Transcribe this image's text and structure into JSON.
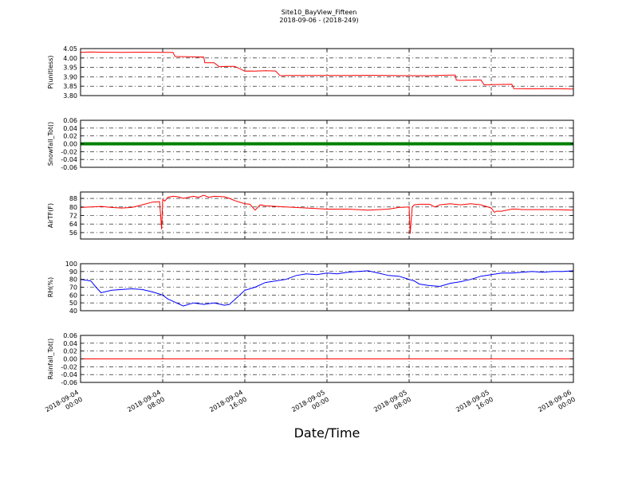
{
  "figure": {
    "title": "Site10_BayView_Fifteen",
    "subtitle": "2018-09-06 - (2018-249)",
    "xlabel": "Date/Time"
  },
  "chart_data": [
    {
      "type": "line",
      "ylabel": "P(unitless)",
      "color": "#ff0000",
      "ylim": [
        3.8,
        4.05
      ],
      "yticks": [
        "4.05",
        "4.00",
        "3.95",
        "3.90",
        "3.85",
        "3.80"
      ],
      "ytick_values": [
        4.05,
        4.0,
        3.95,
        3.9,
        3.85,
        3.8
      ],
      "xlim": [
        0,
        48
      ],
      "grid": true,
      "series": [
        {
          "x": [
            0,
            1,
            2,
            4,
            6,
            8,
            9,
            9.2,
            10,
            12,
            12.1,
            13,
            13.5,
            14,
            15,
            16,
            16.3,
            17,
            18,
            19,
            19.4,
            19.6,
            20,
            22,
            24,
            26,
            28,
            30,
            32,
            34,
            36,
            36.5,
            36.6,
            37,
            38,
            39,
            39.3,
            40,
            42,
            42.2,
            44,
            46,
            48
          ],
          "y": [
            4.03,
            4.032,
            4.031,
            4.03,
            4.031,
            4.03,
            4.03,
            4.008,
            4.007,
            4.005,
            3.975,
            3.975,
            3.954,
            3.955,
            3.956,
            3.93,
            3.931,
            3.93,
            3.932,
            3.931,
            3.907,
            3.906,
            3.907,
            3.907,
            3.907,
            3.907,
            3.908,
            3.907,
            3.906,
            3.906,
            3.909,
            3.909,
            3.882,
            3.881,
            3.882,
            3.883,
            3.857,
            3.858,
            3.86,
            3.837,
            3.836,
            3.837,
            3.835
          ]
        }
      ]
    },
    {
      "type": "line",
      "ylabel": "Snowfall_Tot()",
      "color": "#008000",
      "ylim": [
        -0.06,
        0.06
      ],
      "yticks": [
        "0.06",
        "0.04",
        "0.02",
        "0.00",
        "-0.02",
        "-0.04",
        "-0.06"
      ],
      "ytick_values": [
        0.06,
        0.04,
        0.02,
        0.0,
        -0.02,
        -0.04,
        -0.06
      ],
      "xlim": [
        0,
        48
      ],
      "grid": true,
      "series": [
        {
          "x": [
            0,
            48
          ],
          "y": [
            0,
            0
          ]
        }
      ]
    },
    {
      "type": "line",
      "ylabel": "AirTF(F)",
      "color": "#ff0000",
      "ylim": [
        50,
        94
      ],
      "yticks": [
        "88",
        "80",
        "72",
        "64",
        "56"
      ],
      "ytick_values": [
        88,
        80,
        72,
        64,
        56
      ],
      "xlim": [
        0,
        48
      ],
      "grid": true,
      "series": [
        {
          "x": [
            0,
            1,
            2,
            3,
            4,
            5,
            6,
            7,
            7.7,
            7.9,
            8,
            8.2,
            8.5,
            9,
            9.5,
            10,
            11,
            11.5,
            12,
            12.5,
            13,
            14,
            14.5,
            15,
            16,
            16.5,
            17,
            17.5,
            18,
            20,
            22,
            24,
            26,
            28,
            30,
            31,
            32,
            32.1,
            32.3,
            32.5,
            33,
            34,
            34.5,
            35,
            36,
            37,
            38,
            39,
            40,
            40.3,
            40.5,
            41,
            42,
            42.5,
            43,
            44,
            46,
            48
          ],
          "y": [
            79.5,
            80,
            80.5,
            79.5,
            79,
            79.5,
            82,
            84.5,
            85,
            59,
            87,
            85.5,
            89,
            90,
            89.5,
            88,
            90,
            89,
            91,
            89,
            90,
            89.5,
            88,
            86,
            83,
            82.5,
            77,
            82,
            81,
            80,
            79,
            78,
            78,
            77,
            78,
            79.5,
            80,
            55,
            80,
            82,
            82.5,
            82.5,
            80,
            82,
            83,
            82,
            83,
            82,
            79,
            75,
            76,
            76,
            78,
            78,
            77.5,
            77.5,
            77.5,
            77
          ]
        }
      ]
    },
    {
      "type": "line",
      "ylabel": "RH(%)",
      "color": "#0000ff",
      "ylim": [
        40,
        100
      ],
      "yticks": [
        "100",
        "90",
        "80",
        "70",
        "60",
        "50",
        "40"
      ],
      "ytick_values": [
        100,
        90,
        80,
        70,
        60,
        50,
        40
      ],
      "xlim": [
        0,
        48
      ],
      "grid": true,
      "series": [
        {
          "x": [
            0,
            1,
            1.5,
            2,
            3,
            4,
            5,
            6,
            7,
            8,
            8.5,
            9,
            10,
            11,
            12,
            13,
            14,
            14.5,
            15,
            15.5,
            16,
            17,
            18,
            19,
            20,
            21,
            22,
            23,
            24,
            25,
            26,
            27,
            28,
            29,
            30,
            31,
            32,
            32.5,
            33,
            34,
            35,
            36,
            37,
            38,
            39,
            40,
            41,
            42,
            43,
            44,
            45,
            46,
            47,
            48
          ],
          "y": [
            80,
            78,
            70,
            63,
            66,
            67,
            68,
            67,
            64,
            60,
            55,
            52,
            46,
            50,
            48,
            50,
            47,
            48,
            54,
            60,
            66,
            70,
            76,
            78,
            80,
            85,
            87,
            86,
            88,
            87,
            89,
            90,
            91,
            88,
            85,
            84,
            80,
            78,
            74,
            72,
            71,
            75,
            77,
            80,
            84,
            86,
            88,
            88,
            89,
            90,
            89,
            90,
            90,
            91
          ]
        }
      ]
    },
    {
      "type": "line",
      "ylabel": "Rainfall_Tot()",
      "color": "#ff0000",
      "ylim": [
        -0.06,
        0.06
      ],
      "yticks": [
        "0.06",
        "0.04",
        "0.02",
        "0.00",
        "-0.02",
        "-0.04",
        "-0.06"
      ],
      "ytick_values": [
        0.06,
        0.04,
        0.02,
        0.0,
        -0.02,
        -0.04,
        -0.06
      ],
      "xlim": [
        0,
        48
      ],
      "grid": true,
      "series": [
        {
          "x": [
            0,
            48
          ],
          "y": [
            0,
            0
          ]
        }
      ]
    }
  ],
  "x_axis": {
    "tick_values": [
      0,
      8,
      16,
      24,
      32,
      40,
      48
    ],
    "tick_labels": [
      [
        "2018-09-04",
        "00:00"
      ],
      [
        "2018-09-04",
        "08:00"
      ],
      [
        "2018-09-04",
        "16:00"
      ],
      [
        "2018-09-05",
        "00:00"
      ],
      [
        "2018-09-05",
        "08:00"
      ],
      [
        "2018-09-05",
        "16:00"
      ],
      [
        "2018-09-06",
        "00:00"
      ]
    ]
  }
}
